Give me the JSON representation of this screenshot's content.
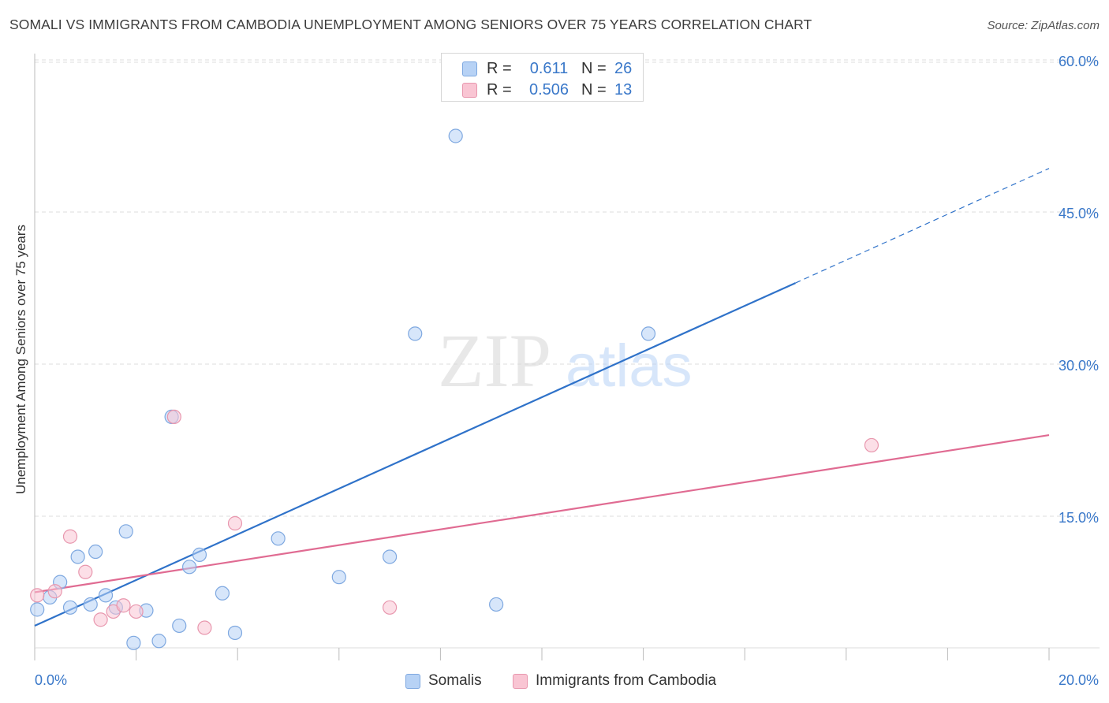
{
  "title": "SOMALI VS IMMIGRANTS FROM CAMBODIA UNEMPLOYMENT AMONG SENIORS OVER 75 YEARS CORRELATION CHART",
  "source": "Source: ZipAtlas.com",
  "watermark": {
    "zip": "ZIP",
    "atlas": "atlas"
  },
  "legend": {
    "somalis": {
      "r_label": "R =",
      "r_value": "0.611",
      "n_label": "N =",
      "n_value": "26"
    },
    "cambodia": {
      "r_label": "R =",
      "r_value": "0.506",
      "n_label": "N =",
      "n_value": "13"
    }
  },
  "colors": {
    "somalis_fill": "#b7d2f5",
    "somalis_stroke": "#7ea8e0",
    "somalis_line": "#2f72c9",
    "cambodia_fill": "#f9c5d3",
    "cambodia_stroke": "#e897ae",
    "cambodia_line": "#e06b92",
    "axis_text": "#3a78c9",
    "grid": "#dddddd"
  },
  "chart_data": {
    "type": "scatter",
    "title": "SOMALI VS IMMIGRANTS FROM CAMBODIA UNEMPLOYMENT AMONG SENIORS OVER 75 YEARS CORRELATION CHART",
    "xlabel": "",
    "ylabel": "Unemployment Among Seniors over 75 years",
    "xlim": [
      0,
      20
    ],
    "ylim": [
      0,
      62
    ],
    "x_tick_labels": [
      "0.0%",
      "20.0%"
    ],
    "y_ticks": [
      15,
      30,
      45,
      60
    ],
    "y_tick_labels": [
      "15.0%",
      "30.0%",
      "45.0%",
      "60.0%"
    ],
    "grid": true,
    "legend_position": "top-center",
    "series": [
      {
        "name": "Somalis",
        "points": [
          [
            0.05,
            5.8
          ],
          [
            0.3,
            7.0
          ],
          [
            0.5,
            8.5
          ],
          [
            0.7,
            6.0
          ],
          [
            0.85,
            11.0
          ],
          [
            1.1,
            6.3
          ],
          [
            1.2,
            11.5
          ],
          [
            1.4,
            7.2
          ],
          [
            1.6,
            6.0
          ],
          [
            1.8,
            13.5
          ],
          [
            2.2,
            5.7
          ],
          [
            1.95,
            2.5
          ],
          [
            2.45,
            2.7
          ],
          [
            2.85,
            4.2
          ],
          [
            3.05,
            10.0
          ],
          [
            3.25,
            11.2
          ],
          [
            3.7,
            7.4
          ],
          [
            3.95,
            3.5
          ],
          [
            4.8,
            12.8
          ],
          [
            6.0,
            9.0
          ],
          [
            7.0,
            11.0
          ],
          [
            7.5,
            33.0
          ],
          [
            8.3,
            52.5
          ],
          [
            9.1,
            6.3
          ],
          [
            12.1,
            33.0
          ],
          [
            2.7,
            24.8
          ]
        ],
        "trend": {
          "x0": 0,
          "y0": 4.2,
          "x1": 15.0,
          "y1": 38.0,
          "dashed_to_x": 20.0,
          "dashed_to_y": 49.3
        }
      },
      {
        "name": "Immigrants from Cambodia",
        "points": [
          [
            0.05,
            7.2
          ],
          [
            0.4,
            7.6
          ],
          [
            0.7,
            13.0
          ],
          [
            1.0,
            9.5
          ],
          [
            1.3,
            4.8
          ],
          [
            1.55,
            5.6
          ],
          [
            1.75,
            6.2
          ],
          [
            2.0,
            5.6
          ],
          [
            2.75,
            24.8
          ],
          [
            3.35,
            4.0
          ],
          [
            3.95,
            14.3
          ],
          [
            7.0,
            6.0
          ],
          [
            16.5,
            22.0
          ]
        ],
        "trend": {
          "x0": 0,
          "y0": 7.5,
          "x1": 20.0,
          "y1": 23.0
        }
      }
    ]
  },
  "bottom_legend": {
    "somalis": "Somalis",
    "cambodia": "Immigrants from Cambodia"
  }
}
